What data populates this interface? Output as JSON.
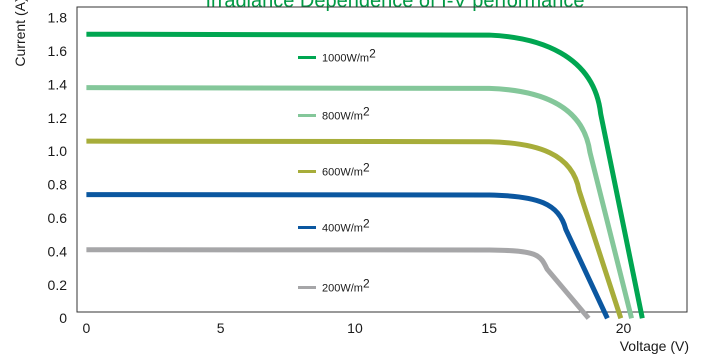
{
  "chart_data": {
    "type": "line",
    "title": "Irradiance Dependence of I-V performance",
    "xlabel": "Voltage (V)",
    "ylabel": "Current (A)",
    "xlim": [
      0,
      22
    ],
    "ylim": [
      0,
      1.8
    ],
    "x_ticks": [
      0,
      5,
      10,
      15,
      20
    ],
    "x_tick_labels": [
      "0",
      "5",
      "10",
      "15",
      "20"
    ],
    "y_ticks": [
      0,
      0.2,
      0.4,
      0.6,
      0.8,
      1.0,
      1.2,
      1.4,
      1.6,
      1.8
    ],
    "y_tick_labels": [
      "0",
      "0.2",
      "0.4",
      "0.6",
      "0.8",
      "1.0",
      "1.2",
      "1.4",
      "1.6",
      "1.8"
    ],
    "grid": false,
    "legend_position": "inside-center",
    "series": [
      {
        "name": "1000W/m",
        "superscript": "2",
        "color": "#00a651",
        "isc": 1.7,
        "knee_v": 15.0,
        "voc": 20.7
      },
      {
        "name": "800W/m",
        "superscript": "2",
        "color": "#84c79a",
        "isc": 1.38,
        "knee_v": 15.0,
        "voc": 20.3
      },
      {
        "name": "600W/m",
        "superscript": "2",
        "color": "#a7ad3a",
        "isc": 1.06,
        "knee_v": 15.0,
        "voc": 19.9
      },
      {
        "name": "400W/m",
        "superscript": "2",
        "color": "#0b57a0",
        "isc": 0.74,
        "knee_v": 15.0,
        "voc": 19.4
      },
      {
        "name": "200W/m",
        "superscript": "2",
        "color": "#a6a6a8",
        "isc": 0.41,
        "knee_v": 15.0,
        "voc": 18.7
      }
    ]
  }
}
